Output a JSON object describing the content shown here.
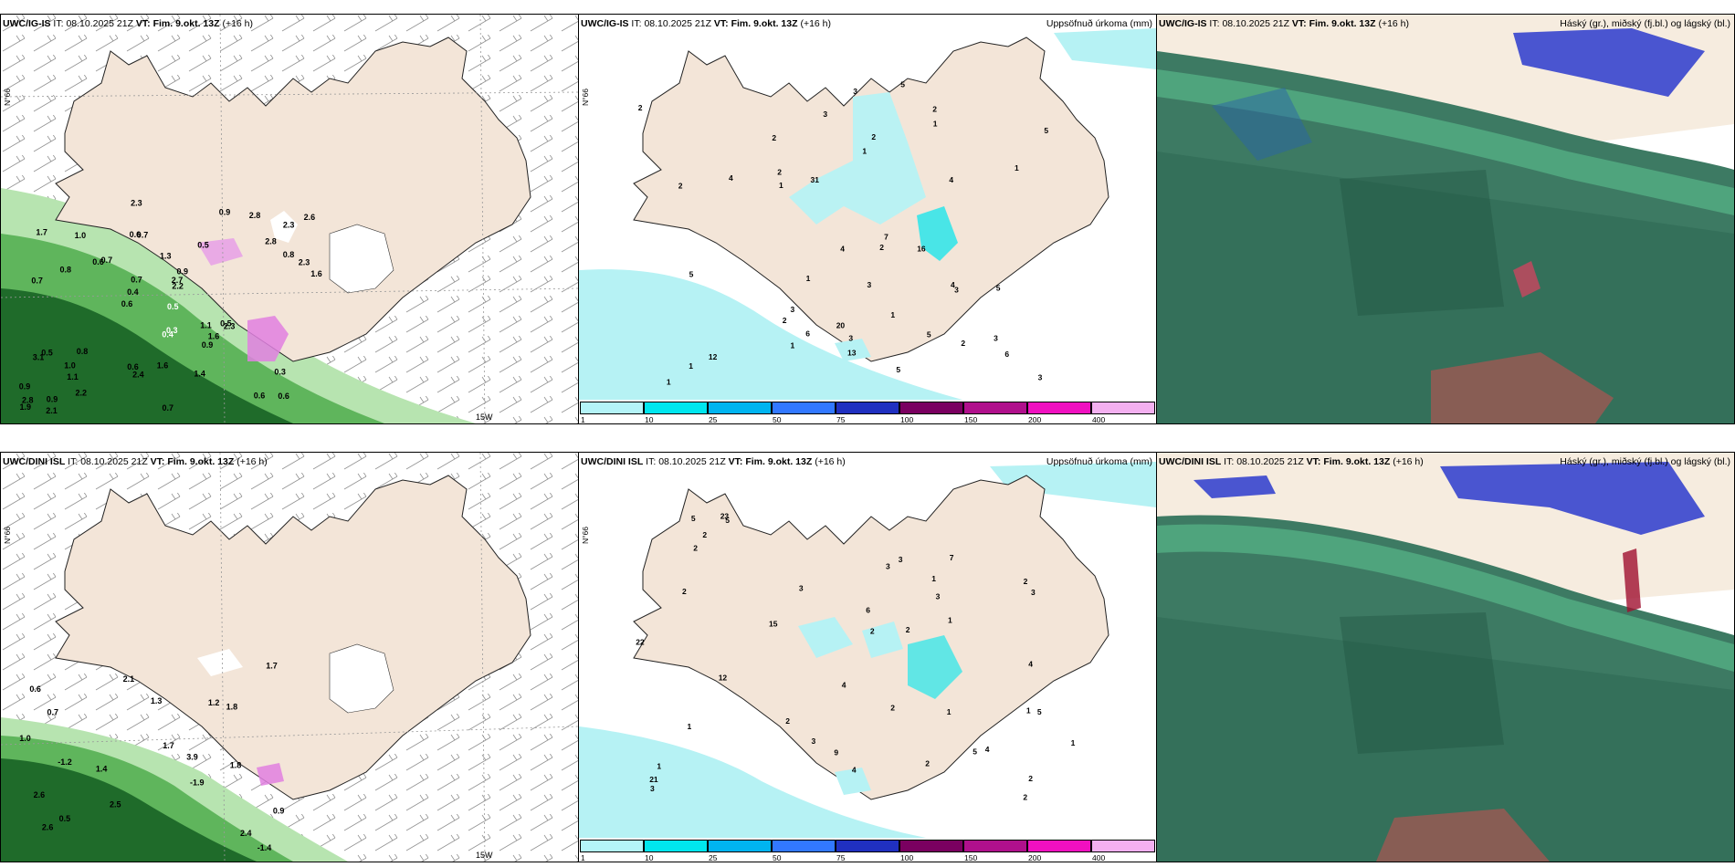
{
  "rows": [
    {
      "model": "UWC/IG-IS",
      "temp_panel": {
        "run_label": "IT:",
        "run_value": "08.10.2025 21Z",
        "valid_label": "VT:",
        "valid_value": "Fim. 9.okt. 13Z",
        "lead": "(+16 h)",
        "lat_label": "N°66",
        "lon_label": "15W",
        "values": [
          "0.6",
          "0.7",
          "2.3",
          "0.6",
          "0.5",
          "0.9",
          "0.6",
          "1.3",
          "0.5",
          "0.7",
          "0.9",
          "1.1",
          "0.7",
          "0.9",
          "2.3",
          "1.7",
          "2.3",
          "1.6",
          "1.1",
          "0.8",
          "0.4",
          "0.6",
          "0.7",
          "1.0",
          "0.9",
          "0.8",
          "0.6",
          "0.3",
          "0.5",
          "0.7",
          "0.6",
          "0.8",
          "0.9",
          "2.2",
          "2.3",
          "2.7",
          "2.8",
          "2.4",
          "2.2",
          "3.1",
          "2.8",
          "2.6",
          "1.6",
          "1.4",
          "1.0",
          "2.1",
          "1.9",
          "1.6",
          "2.8"
        ],
        "white_values": [
          "0.4",
          "0.3",
          "0.5"
        ]
      },
      "precip_panel": {
        "run_label": "IT:",
        "run_value": "08.10.2025 21Z",
        "valid_label": "VT:",
        "valid_value": "Fim. 9.okt. 13Z",
        "lead": "(+16 h)",
        "title": "Uppsöfnuð úrkoma (mm)",
        "lat_label": "N°66",
        "values": [
          "1",
          "5",
          "7",
          "3",
          "3",
          "5",
          "3",
          "2",
          "2",
          "2",
          "3",
          "1",
          "6",
          "3",
          "5",
          "2",
          "4",
          "5",
          "4",
          "5",
          "2",
          "12",
          "13",
          "16",
          "3",
          "1",
          "31",
          "1",
          "1",
          "1",
          "6",
          "1",
          "2",
          "1",
          "2",
          "5",
          "3",
          "4",
          "2",
          "20",
          "4",
          "3",
          "2",
          "1"
        ]
      },
      "cloud_panel": {
        "run_label": "IT:",
        "run_value": "08.10.2025 21Z",
        "valid_label": "VT:",
        "valid_value": "Fim. 9.okt. 13Z",
        "lead": "(+16 h)",
        "title": "Háský (gr.), miðský (fj.bl.) og lágský (bl.)"
      }
    },
    {
      "model": "UWC/DINI ISL",
      "temp_panel": {
        "run_label": "IT:",
        "run_value": "08.10.2025 21Z",
        "valid_label": "VT:",
        "valid_value": "Fim. 9.okt. 13Z",
        "lead": "(+16 h)",
        "lat_label": "N°66",
        "lon_label": "15W",
        "values": [
          "-1.4",
          "-1.2",
          "-1.9",
          "0.6",
          "0.9",
          "0.7",
          "0.5",
          "1.4",
          "1.8",
          "1.3",
          "1.2",
          "2.4",
          "2.5",
          "2.1",
          "3.9",
          "2.6",
          "1.8",
          "1.7",
          "1.0",
          "2.6",
          "1.7"
        ]
      },
      "precip_panel": {
        "run_label": "IT:",
        "run_value": "08.10.2025 21Z",
        "valid_label": "VT:",
        "valid_value": "Fim. 9.okt. 13Z",
        "lead": "(+16 h)",
        "title": "Uppsöfnuð úrkoma (mm)",
        "lat_label": "N°66",
        "values": [
          "1",
          "2",
          "1",
          "1",
          "3",
          "4",
          "6",
          "3",
          "5",
          "1",
          "5",
          "2",
          "4",
          "4",
          "5",
          "3",
          "2",
          "2",
          "2",
          "1",
          "12",
          "7",
          "15",
          "3",
          "23",
          "22",
          "5",
          "2",
          "2",
          "1",
          "9",
          "21",
          "2",
          "3",
          "3",
          "3",
          "2",
          "4",
          "2",
          "2",
          "1"
        ]
      },
      "cloud_panel": {
        "run_label": "IT:",
        "run_value": "08.10.2025 21Z",
        "valid_label": "VT:",
        "valid_value": "Fim. 9.okt. 13Z",
        "lead": "(+16 h)",
        "title": "Háský (gr.), miðský (fj.bl.) og lágský (bl.)"
      }
    }
  ],
  "colorbar": {
    "ticks": [
      "1",
      "10",
      "25",
      "50",
      "75",
      "100",
      "150",
      "200",
      "400"
    ],
    "colors": [
      "#b4f4f8",
      "#00e6ee",
      "#00b4f0",
      "#3278ff",
      "#2030c0",
      "#7a0060",
      "#b0108c",
      "#f010c0",
      "#f4b0f0"
    ]
  },
  "colors": {
    "land": "#f3e5d8",
    "sea_rain": "#b6f2f4",
    "green_light": "#b7e4b0",
    "green_mid": "#5fb55c",
    "green_dark": "#1f6b2a",
    "cloud_base": "#3d7a63"
  }
}
